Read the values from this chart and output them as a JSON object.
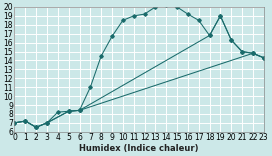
{
  "xlabel": "Humidex (Indice chaleur)",
  "bg_color": "#cce8e8",
  "line_color": "#1a6b6b",
  "grid_color": "#ffffff",
  "xmin": 0,
  "xmax": 23,
  "ymin": 6,
  "ymax": 20,
  "line1_x": [
    0,
    1,
    2,
    3,
    4,
    5,
    6,
    7,
    8,
    9,
    10,
    11,
    12,
    13,
    14,
    15,
    16,
    17,
    18,
    19,
    20,
    21,
    22,
    23
  ],
  "line1_y": [
    7.0,
    7.2,
    6.5,
    7.0,
    8.2,
    8.3,
    8.4,
    11.0,
    14.5,
    16.7,
    18.5,
    19.0,
    19.2,
    20.0,
    20.2,
    20.0,
    19.2,
    18.5,
    16.8,
    19.0,
    16.3,
    15.0,
    14.8,
    14.3
  ],
  "line2_x": [
    0,
    1,
    2,
    3,
    5,
    6,
    22,
    23
  ],
  "line2_y": [
    7.0,
    7.2,
    6.5,
    7.0,
    8.3,
    8.4,
    14.8,
    14.3
  ],
  "line3_x": [
    0,
    1,
    2,
    3,
    5,
    6,
    18,
    19,
    20,
    21,
    22,
    23
  ],
  "line3_y": [
    7.0,
    7.2,
    6.5,
    7.0,
    8.3,
    8.4,
    16.8,
    19.0,
    16.3,
    15.0,
    14.8,
    14.3
  ],
  "xlabel_fontsize": 6.0,
  "tick_fontsize": 5.5
}
